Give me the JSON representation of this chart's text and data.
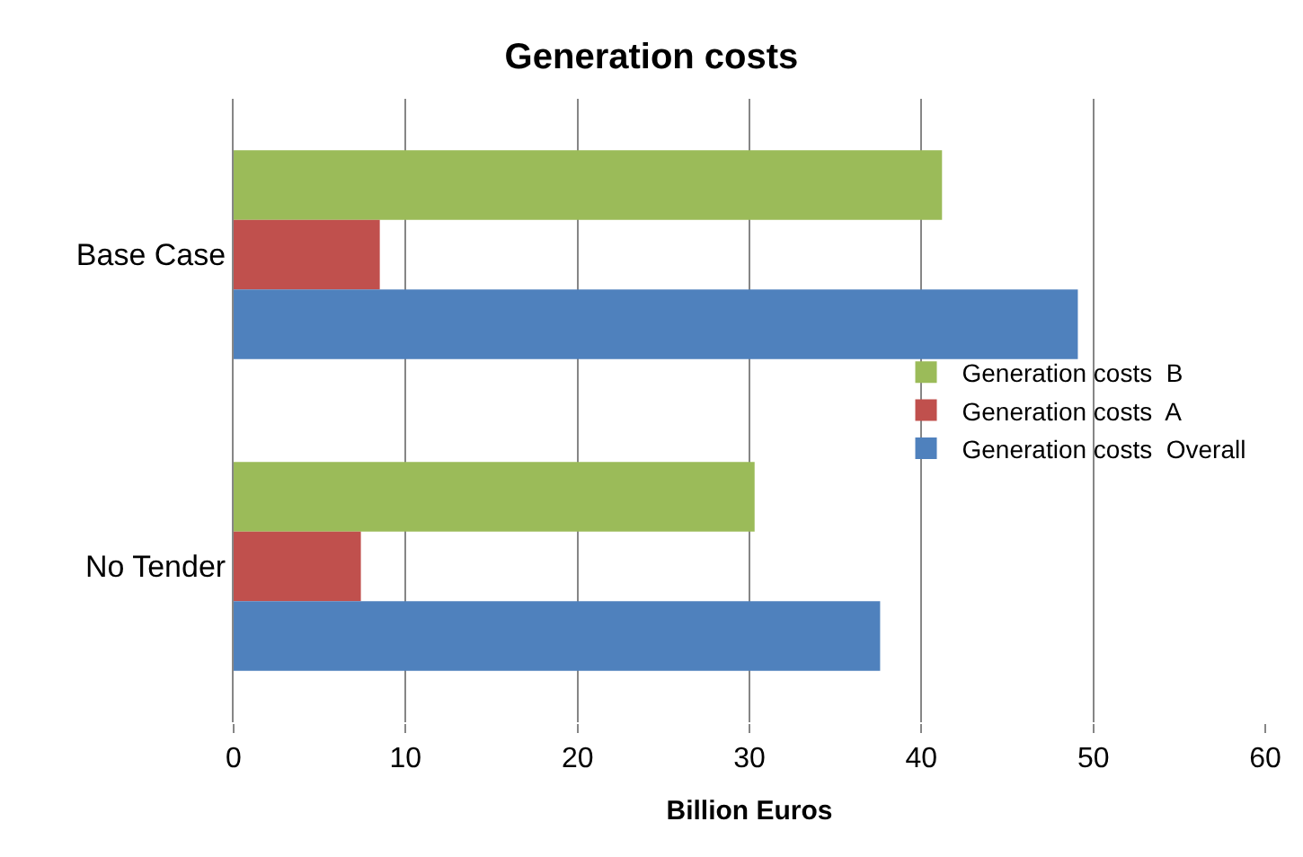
{
  "chart_data": {
    "type": "bar",
    "orientation": "horizontal",
    "title": "Generation costs",
    "xlabel": "Billion Euros",
    "categories": [
      "Base Case",
      "No Tender"
    ],
    "series": [
      {
        "name": "Generation costs  B",
        "color": "#9bbb59",
        "values": [
          41.2,
          30.3
        ]
      },
      {
        "name": "Generation costs  A",
        "color": "#c0504d",
        "values": [
          8.5,
          7.4
        ]
      },
      {
        "name": "Generation costs  Overall",
        "color": "#4f81bd",
        "values": [
          49.1,
          37.6
        ]
      }
    ],
    "xlim": [
      0,
      60
    ],
    "xticks": [
      0,
      10,
      20,
      30,
      40,
      50,
      60
    ],
    "grid": "x",
    "legend": "right"
  }
}
